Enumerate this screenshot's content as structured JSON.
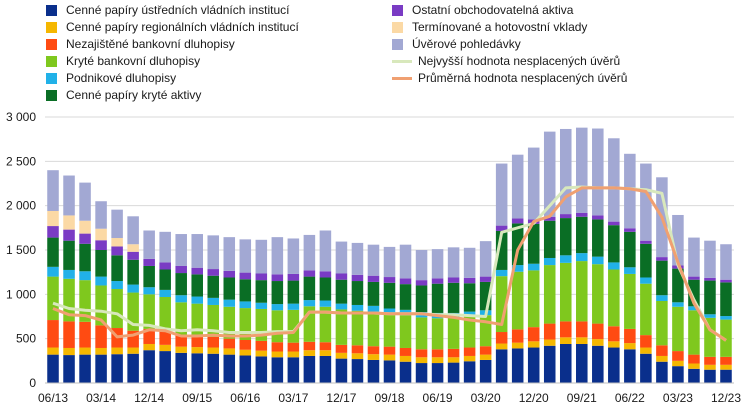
{
  "chart_data": {
    "type": "bar",
    "stacked": true,
    "ylim": [
      0,
      3000
    ],
    "yticks": [
      "0",
      "500",
      "1 000",
      "1 500",
      "2 000",
      "2 500",
      "3 000"
    ],
    "ytick_values": [
      0,
      500,
      1000,
      1500,
      2000,
      2500,
      3000
    ],
    "xtick_labels": [
      "06/13",
      "03/14",
      "12/14",
      "09/15",
      "06/16",
      "03/17",
      "12/17",
      "09/18",
      "06/19",
      "03/20",
      "12/20",
      "09/21",
      "06/22",
      "03/23",
      "12/23"
    ],
    "xtick_every": 3,
    "categories": [
      "06/13",
      "09/13",
      "12/13",
      "03/14",
      "06/14",
      "09/14",
      "12/14",
      "03/15",
      "06/15",
      "09/15",
      "12/15",
      "03/16",
      "06/16",
      "09/16",
      "12/16",
      "03/17",
      "06/17",
      "09/17",
      "12/17",
      "03/18",
      "06/18",
      "09/18",
      "12/18",
      "03/19",
      "06/19",
      "09/19",
      "12/19",
      "03/20",
      "06/20",
      "09/20",
      "12/20",
      "03/21",
      "06/21",
      "09/21",
      "12/21",
      "03/22",
      "06/22",
      "09/22",
      "12/22",
      "03/23",
      "06/23",
      "09/23",
      "12/23"
    ],
    "grid": "horizontal",
    "legend_position": "top",
    "series": [
      {
        "name": "Cenné papíry ústředních vládních institucí",
        "color": "#0a2f8c",
        "values": [
          320,
          315,
          320,
          320,
          325,
          330,
          370,
          360,
          340,
          335,
          330,
          320,
          310,
          300,
          290,
          290,
          305,
          305,
          275,
          270,
          260,
          255,
          240,
          225,
          225,
          230,
          245,
          260,
          380,
          390,
          400,
          420,
          440,
          440,
          420,
          400,
          380,
          330,
          240,
          190,
          160,
          150,
          150
        ]
      },
      {
        "name": "Cenné papíry regionálních vládních institucí",
        "color": "#f5b700",
        "values": [
          80,
          80,
          80,
          75,
          75,
          70,
          70,
          70,
          70,
          70,
          70,
          70,
          65,
          65,
          65,
          65,
          65,
          65,
          65,
          65,
          65,
          65,
          65,
          65,
          65,
          60,
          60,
          60,
          65,
          65,
          70,
          70,
          75,
          75,
          75,
          70,
          70,
          70,
          65,
          60,
          60,
          55,
          55
        ]
      },
      {
        "name": "Nezajištěné bankovní dluhopisy",
        "color": "#ff4b12",
        "values": [
          310,
          300,
          290,
          255,
          220,
          190,
          170,
          150,
          130,
          120,
          120,
          110,
          110,
          110,
          105,
          100,
          95,
          90,
          90,
          90,
          90,
          90,
          90,
          90,
          90,
          95,
          95,
          95,
          130,
          150,
          160,
          180,
          180,
          180,
          175,
          170,
          160,
          140,
          120,
          110,
          100,
          90,
          90
        ]
      },
      {
        "name": "Kryté bankovní dluhopisy",
        "color": "#7fc81e",
        "values": [
          490,
          480,
          470,
          450,
          440,
          430,
          390,
          390,
          370,
          370,
          360,
          360,
          360,
          360,
          360,
          370,
          400,
          400,
          400,
          390,
          390,
          370,
          370,
          360,
          350,
          350,
          350,
          350,
          630,
          650,
          640,
          660,
          660,
          680,
          670,
          640,
          620,
          580,
          500,
          500,
          500,
          440,
          420
        ]
      },
      {
        "name": "Podnikové dluhopisy",
        "color": "#21b1e8",
        "values": [
          110,
          100,
          100,
          100,
          90,
          90,
          80,
          80,
          80,
          80,
          80,
          80,
          75,
          70,
          70,
          70,
          70,
          70,
          65,
          65,
          65,
          60,
          60,
          60,
          60,
          55,
          55,
          55,
          70,
          75,
          75,
          80,
          85,
          90,
          85,
          80,
          75,
          70,
          65,
          50,
          45,
          40,
          40
        ]
      },
      {
        "name": "Cenné papíry kryté aktivy",
        "color": "#0a6e25",
        "values": [
          330,
          330,
          310,
          300,
          290,
          280,
          240,
          230,
          250,
          250,
          250,
          250,
          250,
          255,
          260,
          260,
          265,
          260,
          270,
          270,
          270,
          290,
          290,
          300,
          330,
          340,
          320,
          320,
          440,
          470,
          450,
          420,
          420,
          410,
          420,
          420,
          400,
          380,
          390,
          380,
          300,
          380,
          380
        ]
      },
      {
        "name": "Ostatní obchodovatelná aktiva",
        "color": "#7a3bc4",
        "values": [
          130,
          125,
          115,
          110,
          100,
          90,
          80,
          80,
          80,
          75,
          75,
          75,
          75,
          75,
          75,
          75,
          70,
          70,
          70,
          70,
          70,
          65,
          65,
          60,
          60,
          60,
          60,
          60,
          60,
          55,
          50,
          45,
          45,
          45,
          45,
          40,
          40,
          35,
          40,
          35,
          35,
          30,
          30
        ]
      },
      {
        "name": "Termínované  a hotovostní vklady",
        "color": "#fbd9a5",
        "values": [
          170,
          160,
          145,
          130,
          95,
          85,
          0,
          0,
          0,
          0,
          0,
          0,
          0,
          0,
          0,
          0,
          0,
          0,
          0,
          0,
          0,
          0,
          0,
          0,
          0,
          0,
          0,
          0,
          0,
          0,
          0,
          0,
          0,
          0,
          0,
          0,
          0,
          0,
          0,
          0,
          0,
          0,
          0
        ]
      },
      {
        "name": "Úvěrové  pohledávky",
        "color": "#a2a8d3",
        "values": [
          460,
          450,
          430,
          310,
          320,
          315,
          320,
          345,
          360,
          380,
          380,
          380,
          375,
          380,
          420,
          400,
          400,
          460,
          360,
          360,
          350,
          340,
          380,
          340,
          330,
          340,
          340,
          400,
          700,
          720,
          810,
          960,
          960,
          960,
          980,
          940,
          840,
          870,
          900,
          570,
          440,
          420,
          400
        ]
      }
    ],
    "lines": [
      {
        "name": "Nejvyšší hodnota nesplacených úvěrů",
        "color": "#d8e8bc",
        "values": [
          900,
          840,
          820,
          810,
          780,
          660,
          650,
          610,
          590,
          600,
          590,
          570,
          570,
          570,
          580,
          580,
          800,
          800,
          790,
          790,
          790,
          780,
          780,
          780,
          770,
          770,
          760,
          750,
          1700,
          1750,
          1800,
          2000,
          2200,
          2210,
          2200,
          2200,
          2190,
          2180,
          2140,
          1330,
          940,
          600,
          480
        ]
      },
      {
        "name": "Průměrná hodnota nesplacených úvěrů",
        "color": "#f0a071",
        "values": [
          840,
          770,
          760,
          710,
          520,
          540,
          600,
          590,
          530,
          530,
          540,
          530,
          530,
          540,
          560,
          570,
          800,
          800,
          790,
          790,
          790,
          780,
          780,
          780,
          760,
          740,
          710,
          690,
          660,
          1500,
          1820,
          1880,
          2100,
          2200,
          2200,
          2200,
          2190,
          2160,
          1870,
          1360,
          900,
          600,
          480
        ]
      }
    ]
  }
}
